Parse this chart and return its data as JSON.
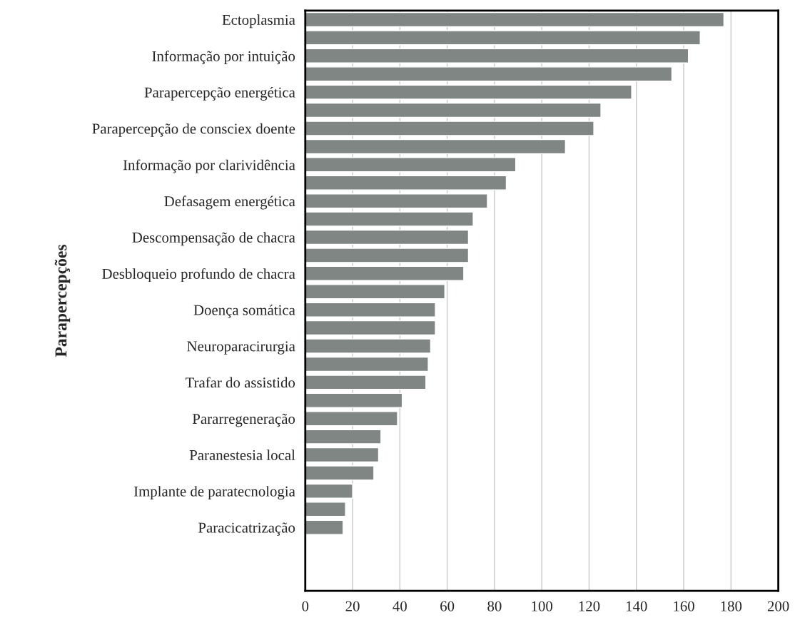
{
  "chart_data": {
    "type": "bar",
    "orientation": "horizontal",
    "ylabel": "Parapercepções",
    "categories": [
      "Ectoplasmia",
      null,
      "Informação por intuição",
      null,
      "Parapercepção energética",
      null,
      "Parapercepção de consciex doente",
      null,
      "Informação por clarividência",
      null,
      "Defasagem energética",
      null,
      "Descompensação de chacra",
      null,
      "Desbloqueio profundo de chacra",
      null,
      "Doença somática",
      null,
      "Neuroparacirurgia",
      null,
      "Trafar do assistido",
      null,
      "Pararregeneração",
      null,
      "Paranestesia local",
      null,
      "Implante de paratecnologia",
      null,
      "Paracicatrização",
      null,
      null,
      null
    ],
    "values": [
      177,
      167,
      162,
      155,
      138,
      125,
      122,
      110,
      89,
      85,
      77,
      71,
      69,
      69,
      67,
      59,
      55,
      55,
      53,
      52,
      51,
      41,
      39,
      32,
      31,
      29,
      20,
      17,
      16,
      null,
      null,
      null
    ],
    "color": "#7f8683",
    "xlim": [
      0,
      200
    ],
    "xticks": [
      0,
      20,
      40,
      60,
      80,
      100,
      120,
      140,
      160,
      180,
      200
    ],
    "grid": "x"
  }
}
